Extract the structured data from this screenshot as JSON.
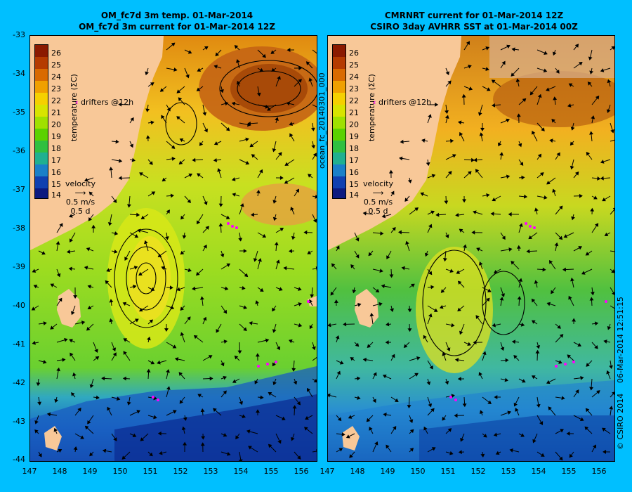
{
  "left_panel": {
    "title_line1": "OM_fc7d 3m temp. 01-Mar-2014",
    "title_line2": "OM_fc7d 3m current for 01-Mar-2014 12Z"
  },
  "right_panel": {
    "title_line1": "CMRNRT current for 01-Mar-2014 12Z",
    "title_line2": "CSIRO 3day AVHRR SST at 01-Mar-2014 00Z"
  },
  "colorbar": {
    "title": "temperature (ΣC)",
    "labels": [
      "26",
      "25",
      "24",
      "23",
      "22",
      "21",
      "20",
      "19",
      "18",
      "17",
      "16",
      "15",
      "14"
    ],
    "colors": [
      "#8b1a00",
      "#b53b00",
      "#d96a00",
      "#f0a000",
      "#f5d000",
      "#d8e400",
      "#a0e000",
      "#5cd200",
      "#30c040",
      "#20b090",
      "#1a80c8",
      "#1040b0",
      "#0c1a80"
    ]
  },
  "legend": {
    "drifters": "drifters @12h",
    "velocity_title": "velocity",
    "velocity_scale": "0.5 m/s",
    "time_scale": "0.5 d"
  },
  "axes": {
    "y_labels": [
      "-33",
      "-34",
      "-35",
      "-36",
      "-37",
      "-38",
      "-39",
      "-40",
      "-41",
      "-42",
      "-43",
      "-44"
    ],
    "x_labels": [
      "147",
      "148",
      "149",
      "150",
      "151",
      "152",
      "153",
      "154",
      "155",
      "156"
    ]
  },
  "side_labels": {
    "run_id": "ocean_fc_20140301_000",
    "timestamp": "06-Mar-2014 12:51:15",
    "credit": "© CSIRO 2014"
  },
  "colors": {
    "background": "#00bfff",
    "land": "#f8c898",
    "drifter": "#ff00ff"
  }
}
